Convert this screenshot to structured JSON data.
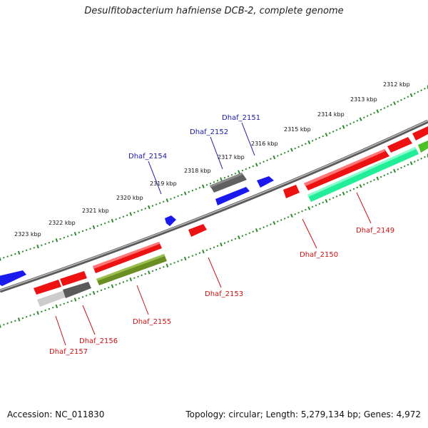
{
  "title": "Desulfitobacterium hafniense DCB-2, complete genome",
  "footer": {
    "accession": "Accession: NC_011830",
    "summary": "Topology: circular; Length: 5,279,134 bp; Genes: 4,972"
  },
  "scale_labels": [
    "2312 kbp",
    "2313 kbp",
    "2314 kbp",
    "2315 kbp",
    "2316 kbp",
    "2317 kbp",
    "2318 kbp",
    "2319 kbp",
    "2320 kbp",
    "2321 kbp",
    "2322 kbp",
    "2323 kbp"
  ],
  "gene_labels_forward": [
    "Dhaf_2151",
    "Dhaf_2152",
    "Dhaf_2154"
  ],
  "gene_labels_reverse": [
    "Dhaf_2149",
    "Dhaf_2150",
    "Dhaf_2153",
    "Dhaf_2155",
    "Dhaf_2156",
    "Dhaf_2157"
  ],
  "colors": {
    "backbone": "#7a7a7a",
    "ticks": "#2a8a2a",
    "forward_gene": "#1a1aee",
    "reverse_gene": "#ee1111",
    "gray_gene": "#5a5a5a",
    "olive_gene": "#6b8e23",
    "teal_gene": "#22ee99",
    "forward_label": "#1a1aaa",
    "reverse_label": "#cc1111"
  }
}
